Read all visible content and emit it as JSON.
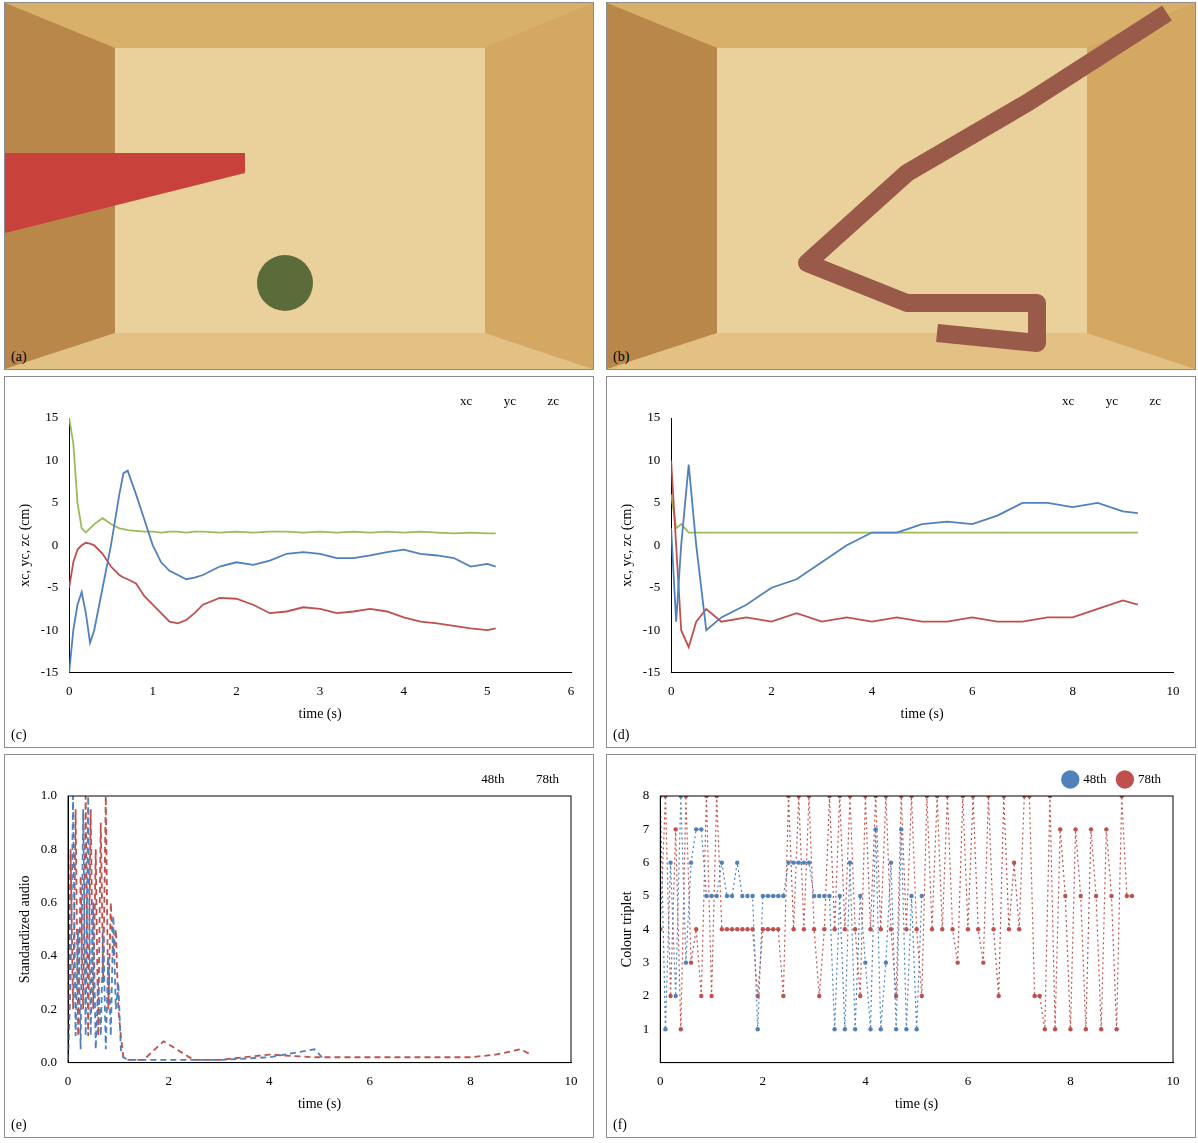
{
  "images": [
    {
      "panel": "(a)"
    },
    {
      "panel": "(b)"
    }
  ],
  "chart_data": [
    {
      "type": "line",
      "panel": "(c)",
      "x_label": "time (s)",
      "y_label": "xc, yc, zc (cm)",
      "x": [
        0,
        0.05,
        0.1,
        0.15,
        0.2,
        0.25,
        0.3,
        0.4,
        0.5,
        0.6,
        0.65,
        0.7,
        0.8,
        0.9,
        1.0,
        1.1,
        1.2,
        1.3,
        1.4,
        1.5,
        1.6,
        1.8,
        2.0,
        2.2,
        2.4,
        2.6,
        2.8,
        3.0,
        3.2,
        3.4,
        3.6,
        3.8,
        4.0,
        4.2,
        4.4,
        4.6,
        4.8,
        5.0,
        5.1
      ],
      "series": [
        {
          "name": "xc",
          "color": "#4f81bd",
          "marker": "none",
          "line_style": "solid",
          "values": [
            -15,
            -10,
            -7,
            -5.5,
            -8,
            -11.5,
            -10,
            -5,
            0,
            6,
            8.5,
            8.8,
            6,
            3,
            0,
            -2,
            -3,
            -3.5,
            -4,
            -3.8,
            -3.5,
            -2.5,
            -2,
            -2.3,
            -1.8,
            -1,
            -0.8,
            -1,
            -1.5,
            -1.5,
            -1.2,
            -0.8,
            -0.5,
            -1,
            -1.2,
            -1.5,
            -2.5,
            -2.2,
            -2.5
          ]
        },
        {
          "name": "yc",
          "color": "#c0504d",
          "marker": "none",
          "line_style": "solid",
          "values": [
            -5,
            -2,
            -0.5,
            0,
            0.3,
            0.2,
            0,
            -1,
            -2.5,
            -3.5,
            -3.8,
            -4,
            -4.5,
            -6,
            -7,
            -8,
            -9,
            -9.2,
            -8.8,
            -8,
            -7,
            -6.2,
            -6.3,
            -7,
            -8,
            -7.8,
            -7.3,
            -7.5,
            -8,
            -7.8,
            -7.5,
            -7.8,
            -8.5,
            -9,
            -9.2,
            -9.5,
            -9.8,
            -10,
            -9.8
          ]
        },
        {
          "name": "zc",
          "color": "#9bbb59",
          "marker": "none",
          "line_style": "solid",
          "values": [
            15,
            12,
            5,
            2,
            1.5,
            2,
            2.5,
            3.2,
            2.5,
            2,
            1.9,
            1.8,
            1.7,
            1.6,
            1.6,
            1.5,
            1.6,
            1.6,
            1.5,
            1.6,
            1.6,
            1.5,
            1.6,
            1.5,
            1.6,
            1.6,
            1.5,
            1.6,
            1.5,
            1.6,
            1.5,
            1.6,
            1.5,
            1.6,
            1.5,
            1.4,
            1.5,
            1.4,
            1.4
          ]
        }
      ],
      "xlim": [
        0,
        6
      ],
      "xticks": [
        0,
        1,
        2,
        3,
        4,
        5,
        6
      ],
      "ylim": [
        -15,
        15
      ],
      "yticks": [
        -15,
        -10,
        -5,
        0,
        5,
        10,
        15
      ],
      "grid": false,
      "legend": "top right"
    },
    {
      "type": "line",
      "panel": "(d)",
      "x_label": "time (s)",
      "y_label": "xc, yc, zc (cm)",
      "x": [
        0,
        0.1,
        0.2,
        0.35,
        0.5,
        0.7,
        1,
        1.5,
        2,
        2.5,
        3,
        3.5,
        4,
        4.5,
        5,
        5.5,
        6,
        6.5,
        7,
        7.5,
        8,
        8.5,
        9,
        9.3
      ],
      "series": [
        {
          "name": "xc",
          "color": "#4f81bd",
          "marker": "none",
          "line_style": "solid",
          "values": [
            2,
            -9,
            0,
            9.5,
            0,
            -10,
            -8.5,
            -7,
            -5,
            -4,
            -2,
            0,
            1.5,
            1.5,
            2.5,
            2.8,
            2.5,
            3.5,
            5,
            5,
            4.5,
            5,
            4,
            3.8
          ]
        },
        {
          "name": "yc",
          "color": "#c0504d",
          "marker": "none",
          "line_style": "solid",
          "values": [
            10,
            0,
            -10,
            -12,
            -9,
            -7.5,
            -9,
            -8.5,
            -9,
            -8,
            -9,
            -8.5,
            -9,
            -8.5,
            -9,
            -9,
            -8.5,
            -9,
            -9,
            -8.5,
            -8.5,
            -7.5,
            -6.5,
            -7
          ]
        },
        {
          "name": "zc",
          "color": "#9bbb59",
          "marker": "none",
          "line_style": "solid",
          "values": [
            6,
            2,
            2.5,
            1.5,
            1.5,
            1.5,
            1.5,
            1.5,
            1.5,
            1.5,
            1.5,
            1.5,
            1.5,
            1.5,
            1.5,
            1.5,
            1.5,
            1.5,
            1.5,
            1.5,
            1.5,
            1.5,
            1.5,
            1.5
          ]
        }
      ],
      "xlim": [
        0,
        10
      ],
      "xticks": [
        0,
        2,
        4,
        6,
        8,
        10
      ],
      "ylim": [
        -15,
        15
      ],
      "yticks": [
        -15,
        -10,
        -5,
        0,
        5,
        10,
        15
      ],
      "grid": false,
      "legend": "top right"
    },
    {
      "type": "line",
      "panel": "(e)",
      "x_label": "time (s)",
      "y_label": "Standardized audio",
      "x": [
        0,
        0.05,
        0.1,
        0.15,
        0.2,
        0.25,
        0.3,
        0.35,
        0.4,
        0.45,
        0.5,
        0.55,
        0.6,
        0.65,
        0.7,
        0.75,
        0.8,
        0.85,
        0.9,
        0.95,
        1.0,
        1.05,
        1.1,
        1.2,
        1.5,
        1.9,
        2.5,
        3,
        4,
        4.9,
        5.1,
        6,
        7,
        8,
        8.5,
        9,
        9.2
      ],
      "series": [
        {
          "name": "48th",
          "color": "#4f81bd",
          "marker": "none",
          "line_style": "dashed",
          "values": [
            0.01,
            0.3,
            1.0,
            0.1,
            0.5,
            0.05,
            0.95,
            0.1,
            1.0,
            0.1,
            0.6,
            0.05,
            0.3,
            0.1,
            0.5,
            0.05,
            0.4,
            0.1,
            0.55,
            0.2,
            0.3,
            0.05,
            0.02,
            0.01,
            0.01,
            0.01,
            0.01,
            0.01,
            0.02,
            0.05,
            0.01,
            null,
            null,
            null,
            null,
            null,
            null
          ]
        },
        {
          "name": "78th",
          "color": "#c0504d",
          "marker": "none",
          "line_style": "dashed",
          "values": [
            0.01,
            0.8,
            0.2,
            0.95,
            0.1,
            0.7,
            0.2,
            1.0,
            0.1,
            0.95,
            0.2,
            0.8,
            0.1,
            0.9,
            0.3,
            1.0,
            0.2,
            0.6,
            0.4,
            0.5,
            0.2,
            0.1,
            0.02,
            0.01,
            0.01,
            0.08,
            0.01,
            0.01,
            0.03,
            0.02,
            0.02,
            0.02,
            0.02,
            0.02,
            0.03,
            0.05,
            0.03
          ]
        }
      ],
      "xlim": [
        0,
        10
      ],
      "xticks": [
        0,
        2,
        4,
        6,
        8,
        10
      ],
      "ylim": [
        0,
        1
      ],
      "yticks": [
        {
          "value": 0,
          "label": "0.0"
        },
        {
          "value": 0.2,
          "label": "0.2"
        },
        {
          "value": 0.4,
          "label": "0.4"
        },
        {
          "value": 0.6,
          "label": "0.6"
        },
        {
          "value": 0.8,
          "label": "0.8"
        },
        {
          "value": 1,
          "label": "1.0"
        }
      ],
      "grid": false,
      "legend": "top right"
    },
    {
      "type": "line",
      "panel": "(f)",
      "x_label": "time (s)",
      "y_label": "Colour triplet",
      "x": [
        0,
        0.1,
        0.2,
        0.3,
        0.4,
        0.5,
        0.6,
        0.7,
        0.8,
        0.9,
        1.0,
        1.1,
        1.2,
        1.3,
        1.4,
        1.5,
        1.6,
        1.7,
        1.8,
        1.9,
        2.0,
        2.1,
        2.2,
        2.3,
        2.4,
        2.5,
        2.6,
        2.7,
        2.8,
        2.9,
        3.0,
        3.1,
        3.2,
        3.3,
        3.4,
        3.5,
        3.6,
        3.7,
        3.8,
        3.9,
        4.0,
        4.1,
        4.2,
        4.3,
        4.4,
        4.5,
        4.6,
        4.7,
        4.8,
        4.9,
        5.0,
        5.1,
        5.2,
        5.3,
        5.4,
        5.5,
        5.6,
        5.7,
        5.8,
        5.9,
        6.0,
        6.1,
        6.2,
        6.3,
        6.4,
        6.5,
        6.6,
        6.7,
        6.8,
        6.9,
        7.0,
        7.1,
        7.2,
        7.3,
        7.4,
        7.5,
        7.6,
        7.7,
        7.8,
        7.9,
        8.0,
        8.1,
        8.2,
        8.3,
        8.4,
        8.5,
        8.6,
        8.7,
        8.8,
        8.9,
        9.0,
        9.1,
        9.2
      ],
      "series": [
        {
          "name": "48th",
          "color": "#4f81bd",
          "marker": "circle",
          "line_style": "dotted",
          "values": [
            8,
            1,
            6,
            2,
            8,
            3,
            6,
            7,
            7,
            5,
            5,
            5,
            6,
            5,
            5,
            6,
            5,
            5,
            5,
            1,
            5,
            5,
            5,
            5,
            5,
            6,
            6,
            6,
            6,
            6,
            5,
            5,
            5,
            5,
            1,
            5,
            1,
            6,
            1,
            5,
            3,
            1,
            7,
            1,
            3,
            6,
            1,
            7,
            1,
            5,
            1,
            5,
            null,
            null,
            null,
            null,
            null,
            null,
            null,
            null,
            null,
            null,
            null,
            null,
            null,
            null,
            null,
            null,
            null,
            null,
            null,
            null,
            null,
            null,
            null,
            null,
            null,
            null,
            null,
            null,
            null,
            null,
            null,
            null,
            null,
            null,
            null,
            null,
            null,
            null,
            null,
            null,
            null
          ]
        },
        {
          "name": "78th",
          "color": "#c0504d",
          "marker": "circle",
          "line_style": "dotted",
          "values": [
            4,
            8,
            2,
            7,
            1,
            8,
            3,
            4,
            2,
            8,
            2,
            8,
            4,
            4,
            4,
            4,
            4,
            4,
            4,
            2,
            4,
            4,
            4,
            4,
            2,
            8,
            4,
            8,
            4,
            8,
            4,
            2,
            4,
            8,
            4,
            8,
            4,
            8,
            4,
            2,
            8,
            4,
            8,
            4,
            8,
            4,
            2,
            8,
            4,
            8,
            4,
            2,
            8,
            4,
            8,
            4,
            8,
            4,
            3,
            8,
            4,
            8,
            4,
            3,
            8,
            4,
            2,
            8,
            4,
            6,
            4,
            8,
            8,
            2,
            2,
            1,
            8,
            1,
            7,
            5,
            1,
            7,
            5,
            1,
            7,
            5,
            1,
            7,
            5,
            1,
            8,
            5,
            5
          ]
        }
      ],
      "xlim": [
        0,
        10
      ],
      "xticks": [
        0,
        2,
        4,
        6,
        8,
        10
      ],
      "ylim": [
        0,
        8
      ],
      "yticks": [
        1,
        2,
        3,
        4,
        5,
        6,
        7,
        8
      ],
      "grid": false,
      "legend": "top right"
    }
  ]
}
